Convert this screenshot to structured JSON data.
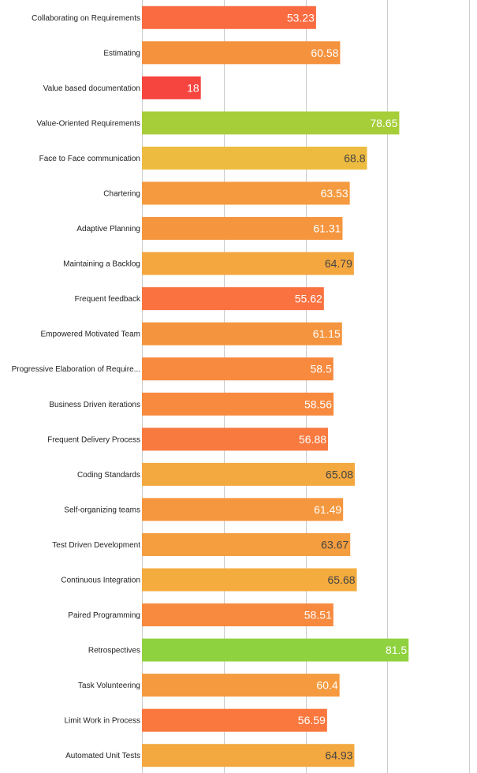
{
  "chart_data": {
    "type": "bar",
    "orientation": "horizontal",
    "title": "",
    "xlabel": "",
    "ylabel": "",
    "xlim": [
      0,
      100
    ],
    "grid": true,
    "categories": [
      "Collaborating on Requirements",
      "Estimating",
      "Value based documentation",
      "Value-Oriented Requirements",
      "Face to Face communication",
      "Chartering",
      "Adaptive Planning",
      "Maintaining a Backlog",
      "Frequent feedback",
      "Empowered Motivated Team",
      "Progressive Elaboration of Require...",
      "Business Driven iterations",
      "Frequent Delivery Process",
      "Coding Standards",
      "Self-organizing teams",
      "Test Driven Development",
      "Continuous Integration",
      "Paired Programming",
      "Retrospectives",
      "Task Volunteering",
      "Limit Work in Process",
      "Automated Unit Tests"
    ],
    "values": [
      53.23,
      60.58,
      18,
      78.65,
      68.8,
      63.53,
      61.31,
      64.79,
      55.62,
      61.15,
      58.5,
      58.56,
      56.88,
      65.08,
      61.49,
      63.67,
      65.68,
      58.51,
      81.5,
      60.4,
      56.59,
      64.93
    ],
    "value_labels": [
      "53.23",
      "60.58",
      "18",
      "78.65",
      "68.8",
      "63.53",
      "61.31",
      "64.79",
      "55.62",
      "61.15",
      "58.5",
      "58.56",
      "56.88",
      "65.08",
      "61.49",
      "63.67",
      "65.68",
      "58.51",
      "81.5",
      "60.4",
      "56.59",
      "64.93"
    ],
    "colors": [
      "#FB6B41",
      "#F5923E",
      "#F6453F",
      "#A6CE39",
      "#EDBB3F",
      "#F59A3F",
      "#F5953E",
      "#F4A73F",
      "#FA7240",
      "#F5943E",
      "#F78A3F",
      "#F78A3F",
      "#F87A3F",
      "#F3A940",
      "#F5973E",
      "#F59E3F",
      "#F4AC3E",
      "#F78A3F",
      "#8FD23F",
      "#F59A3E",
      "#FA783E",
      "#F3A940"
    ],
    "label_colors": [
      "#ffffff",
      "#ffffff",
      "#ffffff",
      "#ffffff",
      "#444444",
      "#ffffff",
      "#ffffff",
      "#444444",
      "#ffffff",
      "#ffffff",
      "#ffffff",
      "#ffffff",
      "#ffffff",
      "#444444",
      "#ffffff",
      "#444444",
      "#444444",
      "#ffffff",
      "#ffffff",
      "#ffffff",
      "#ffffff",
      "#444444"
    ]
  }
}
